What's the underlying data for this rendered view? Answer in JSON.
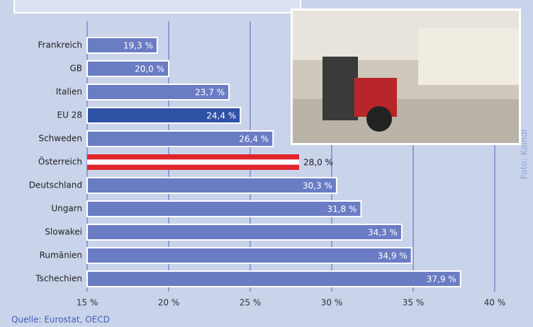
{
  "chart_data": {
    "type": "bar",
    "orientation": "horizontal",
    "categories": [
      "Frankreich",
      "GB",
      "Italien",
      "EU 28",
      "Schweden",
      "Österreich",
      "Deutschland",
      "Ungarn",
      "Slowakei",
      "Rumänien",
      "Tschechien"
    ],
    "values": [
      19.3,
      20.0,
      23.7,
      24.4,
      26.4,
      28.0,
      30.3,
      31.8,
      34.3,
      34.9,
      37.9
    ],
    "value_labels": [
      "19,3 %",
      "20,0 %",
      "23,7 %",
      "24,4 %",
      "26,4 %",
      "28,0 %",
      "30,3 %",
      "31,8 %",
      "34,3 %",
      "34,9 %",
      "37,9 %"
    ],
    "colors": [
      "#6a7cc4",
      "#6a7cc4",
      "#6a7cc4",
      "#2f52a6",
      "#6a7cc4",
      "#e2262c",
      "#6a7cc4",
      "#6a7cc4",
      "#6a7cc4",
      "#6a7cc4",
      "#6a7cc4"
    ],
    "xlim": [
      15,
      42
    ],
    "xticks": [
      {
        "value": 15,
        "label": "15 %"
      },
      {
        "value": 20,
        "label": "20 %"
      },
      {
        "value": 25,
        "label": "25 %"
      },
      {
        "value": 30,
        "label": "30 %"
      },
      {
        "value": 35,
        "label": "35 %"
      },
      {
        "value": 40,
        "label": "40 %"
      }
    ],
    "grid": true,
    "source": "Quelle: Eurostat, OECD",
    "photo_credit": "Foto: Kaindl"
  }
}
